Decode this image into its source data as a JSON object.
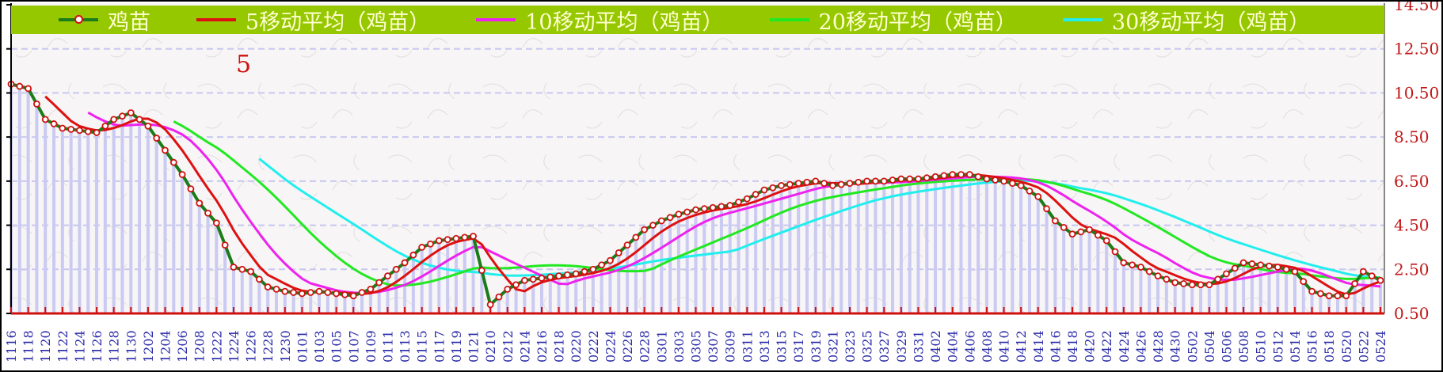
{
  "chart_data": {
    "type": "line",
    "title": "",
    "annotation": "5",
    "xlabel": "",
    "ylabel": "",
    "ylim": [
      0.5,
      14.5
    ],
    "y_ticks": [
      "14.50",
      "12.50",
      "10.50",
      "8.50",
      "6.50",
      "4.50",
      "2.50",
      "0.50"
    ],
    "grid": true,
    "legend_position": "top",
    "categories": [
      "1116",
      "1118",
      "1120",
      "1122",
      "1124",
      "1126",
      "1128",
      "1130",
      "1202",
      "1204",
      "1206",
      "1208",
      "1222",
      "1224",
      "1226",
      "1228",
      "1230",
      "0101",
      "0103",
      "0105",
      "0107",
      "0109",
      "0111",
      "0113",
      "0115",
      "0117",
      "0119",
      "0121",
      "0210",
      "0212",
      "0214",
      "0216",
      "0218",
      "0220",
      "0222",
      "0224",
      "0226",
      "0228",
      "0301",
      "0303",
      "0305",
      "0307",
      "0309",
      "0311",
      "0313",
      "0315",
      "0317",
      "0319",
      "0321",
      "0323",
      "0325",
      "0327",
      "0329",
      "0331",
      "0402",
      "0404",
      "0406",
      "0408",
      "0410",
      "0412",
      "0414",
      "0416",
      "0418",
      "0420",
      "0422",
      "0424",
      "0426",
      "0428",
      "0430",
      "0502",
      "0504",
      "0506",
      "0508",
      "0510",
      "0512",
      "0514",
      "0516",
      "0518",
      "0520",
      "0522",
      "0524"
    ],
    "series": [
      {
        "name": "鸡苗",
        "color": "#1a7d1a",
        "values": [
          10.9,
          10.7,
          9.3,
          8.9,
          8.8,
          8.7,
          9.3,
          9.6,
          9.0,
          7.9,
          6.8,
          5.5,
          4.6,
          2.6,
          2.4,
          1.7,
          1.5,
          1.4,
          1.5,
          1.4,
          1.3,
          1.6,
          2.2,
          2.8,
          3.5,
          3.8,
          3.9,
          4.0,
          0.9,
          1.6,
          2.0,
          2.1,
          2.2,
          2.3,
          2.5,
          2.9,
          3.6,
          4.3,
          4.7,
          5.0,
          5.2,
          5.3,
          5.4,
          5.7,
          6.1,
          6.3,
          6.4,
          6.5,
          6.3,
          6.4,
          6.5,
          6.5,
          6.6,
          6.6,
          6.7,
          6.8,
          6.8,
          6.6,
          6.5,
          6.3,
          5.8,
          4.7,
          4.1,
          4.3,
          3.8,
          2.8,
          2.6,
          2.2,
          1.9,
          1.8,
          1.8,
          2.3,
          2.8,
          2.7,
          2.6,
          2.4,
          1.5,
          1.3,
          1.3,
          2.4,
          2.0
        ]
      },
      {
        "name": "5移动平均（鸡苗）",
        "color": "#dd1111",
        "window": 5
      },
      {
        "name": "10移动平均（鸡苗）",
        "color": "#ee22ee",
        "window": 10
      },
      {
        "name": "20移动平均（鸡苗）",
        "color": "#22e822",
        "window": 20
      },
      {
        "name": "30移动平均（鸡苗）",
        "color": "#22eeee",
        "window": 30
      }
    ]
  }
}
